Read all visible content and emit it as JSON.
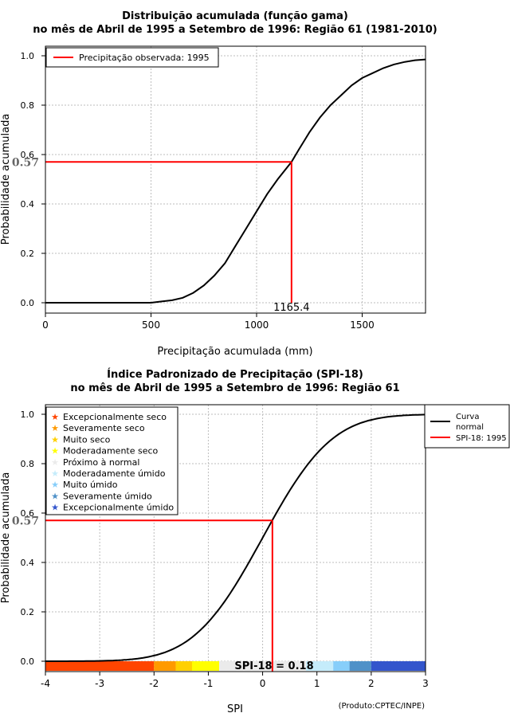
{
  "charts": [
    {
      "type": "line",
      "title_line1": "Distribuição acumulada (função gama)",
      "title_line2": "no mês de Abril de 1995 a Setembro de 1996: Região 61 (1981-2010)",
      "xlabel": "Precipitação acumulada (mm)",
      "ylabel": "Probabilidade acumulada",
      "xlim": [
        0,
        1800
      ],
      "ylim": [
        0,
        1
      ],
      "xticks": [
        0,
        500,
        1000,
        1500
      ],
      "yticks": [
        0.0,
        0.2,
        0.4,
        0.6,
        0.8,
        1.0
      ],
      "ytick_labels": [
        "0.0",
        "0.2",
        "0.4",
        "0.6",
        "0.8",
        "1.0"
      ],
      "curve": {
        "x": [
          0,
          100,
          200,
          300,
          400,
          500,
          550,
          600,
          650,
          700,
          750,
          800,
          850,
          900,
          950,
          1000,
          1050,
          1100,
          1165.4,
          1200,
          1250,
          1300,
          1350,
          1400,
          1450,
          1500,
          1550,
          1600,
          1650,
          1700,
          1750,
          1800
        ],
        "y": [
          0.0,
          0.0,
          0.0,
          0.0,
          0.0,
          0.0,
          0.005,
          0.01,
          0.02,
          0.04,
          0.07,
          0.11,
          0.16,
          0.23,
          0.3,
          0.37,
          0.44,
          0.5,
          0.57,
          0.62,
          0.69,
          0.75,
          0.8,
          0.84,
          0.88,
          0.91,
          0.93,
          0.95,
          0.965,
          0.975,
          0.982,
          0.985
        ]
      },
      "observed": {
        "x": 1165.4,
        "y": 0.57,
        "x_label": "1165.4",
        "y_label": "0.57"
      },
      "legend": {
        "placement": "top-left",
        "entries": [
          {
            "label": "Precipitação observada: 1995",
            "color": "#ff0000"
          }
        ]
      }
    },
    {
      "type": "line",
      "title_line1": "Índice Padronizado de Precipitação (SPI-18)",
      "title_line2": "no mês de Abril de 1995 a Setembro de 1996: Região 61",
      "xlabel": "SPI",
      "ylabel": "Probabilidade acumulada",
      "xlim": [
        -4,
        3
      ],
      "ylim": [
        0,
        1
      ],
      "xticks": [
        -4,
        -3,
        -2,
        -1,
        0,
        1,
        2,
        3
      ],
      "xtick_labels": [
        "-4",
        "-3",
        "-2",
        "-1",
        "0",
        "1",
        "2",
        "3"
      ],
      "yticks": [
        0.0,
        0.2,
        0.4,
        0.6,
        0.8,
        1.0
      ],
      "ytick_labels": [
        "0.0",
        "0.2",
        "0.4",
        "0.6",
        "0.8",
        "1.0"
      ],
      "curve": {
        "name": "Curva normal",
        "from": -4,
        "to": 3,
        "step": 0.05
      },
      "observed": {
        "x": 0.18,
        "y": 0.57,
        "y_label": "0.57",
        "spi_label": "SPI-18 = 0.18"
      },
      "category_legend": [
        {
          "label": "Excepcionalmente seco",
          "color": "#ff4500"
        },
        {
          "label": "Severamente seco",
          "color": "#ff9a00"
        },
        {
          "label": "Muito seco",
          "color": "#ffd000"
        },
        {
          "label": "Moderadamente seco",
          "color": "#ffff00"
        },
        {
          "label": "Próximo à normal",
          "color": "#ebebeb"
        },
        {
          "label": "Moderadamente úmido",
          "color": "#c5ecfb"
        },
        {
          "label": "Muito úmido",
          "color": "#87cefa"
        },
        {
          "label": "Severamente úmido",
          "color": "#4f91c8"
        },
        {
          "label": "Excepcionalmente úmido",
          "color": "#3355cc"
        }
      ],
      "category_bands": [
        {
          "from": -4.0,
          "to": -2.0,
          "color": "#ff4500"
        },
        {
          "from": -2.0,
          "to": -1.6,
          "color": "#ff9a00"
        },
        {
          "from": -1.6,
          "to": -1.3,
          "color": "#ffd000"
        },
        {
          "from": -1.3,
          "to": -0.8,
          "color": "#ffff00"
        },
        {
          "from": -0.8,
          "to": 0.8,
          "color": "#ebebeb"
        },
        {
          "from": 0.8,
          "to": 1.3,
          "color": "#c5ecfb"
        },
        {
          "from": 1.3,
          "to": 1.6,
          "color": "#87cefa"
        },
        {
          "from": 1.6,
          "to": 2.0,
          "color": "#4f91c8"
        },
        {
          "from": 2.0,
          "to": 3.0,
          "color": "#3355cc"
        }
      ],
      "legend": {
        "placement": "top-right",
        "entries": [
          {
            "label_line1": "Curva",
            "label_line2": "normal",
            "color": "#000000"
          },
          {
            "label": "SPI-18: 1995",
            "color": "#ff0000"
          }
        ]
      },
      "credit": "(Produto:CPTEC/INPE)"
    }
  ]
}
